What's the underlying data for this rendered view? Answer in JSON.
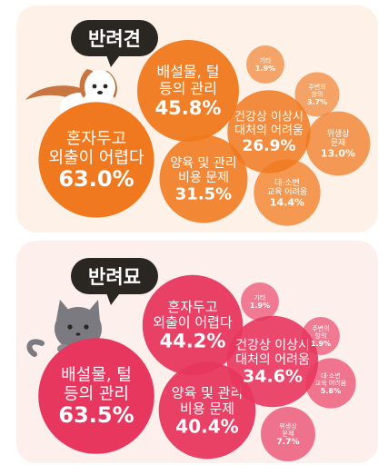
{
  "chart_data": [
    {
      "type": "bubble",
      "title": "반려견",
      "colors": {
        "accent": "#f0781e",
        "panel": "#fdf1e8"
      },
      "items": [
        {
          "line1": "혼자두고",
          "line2": "외출이 어렵다",
          "value": "63.0%",
          "pct": 63.0
        },
        {
          "line1": "배설물, 털",
          "line2": "등의 관리",
          "value": "45.8%",
          "pct": 45.8
        },
        {
          "line1": "양육 및 관리",
          "line2": "비용 문제",
          "value": "31.5%",
          "pct": 31.5
        },
        {
          "line1": "건강상 이상시",
          "line2": "대처의 어려움",
          "value": "26.9%",
          "pct": 26.9
        },
        {
          "line1": "대·소변",
          "line2": "교육 어려움",
          "value": "14.4%",
          "pct": 14.4
        },
        {
          "line1": "위생상",
          "line2": "문제",
          "value": "13.0%",
          "pct": 13.0
        },
        {
          "line1": "주변의",
          "line2": "항의",
          "value": "3.7%",
          "pct": 3.7
        },
        {
          "line1": "기타",
          "line2": "",
          "value": "1.9%",
          "pct": 1.9
        }
      ]
    },
    {
      "type": "bubble",
      "title": "반려묘",
      "colors": {
        "accent": "#e8375f",
        "panel": "#fcefec"
      },
      "items": [
        {
          "line1": "배설물, 털",
          "line2": "등의 관리",
          "value": "63.5%",
          "pct": 63.5
        },
        {
          "line1": "혼자두고",
          "line2": "외출이 어렵다",
          "value": "44.2%",
          "pct": 44.2
        },
        {
          "line1": "양육 및 관리",
          "line2": "비용 문제",
          "value": "40.4%",
          "pct": 40.4
        },
        {
          "line1": "건강상 이상시",
          "line2": "대처의 어려움",
          "value": "34.6%",
          "pct": 34.6
        },
        {
          "line1": "위생상",
          "line2": "문제",
          "value": "7.7%",
          "pct": 7.7
        },
        {
          "line1": "대·소변",
          "line2": "교육 어려움",
          "value": "5.8%",
          "pct": 5.8
        },
        {
          "line1": "주변의",
          "line2": "항의",
          "value": "1.9%",
          "pct": 1.9
        },
        {
          "line1": "기타",
          "line2": "",
          "value": "1.9%",
          "pct": 1.9
        }
      ]
    }
  ]
}
